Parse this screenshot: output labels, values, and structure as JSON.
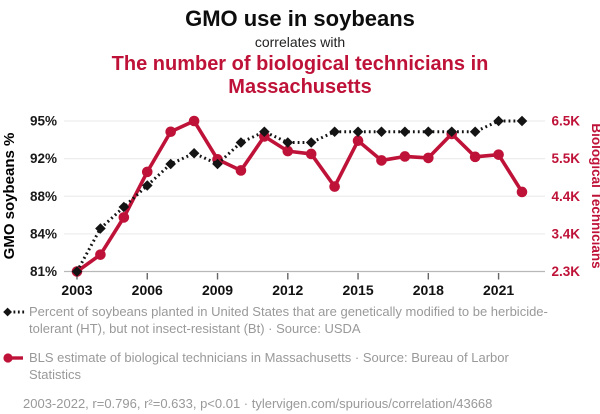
{
  "header": {
    "title": "GMO use in soybeans",
    "connector": "correlates with",
    "subtitle": "The number of biological technicians in Massachusetts"
  },
  "colors": {
    "accent_red": "#bf1238",
    "series_black": "#141414",
    "legend_gray": "#999999",
    "gridline": "#ededed",
    "axis_line": "#b8b8b8",
    "tick_mark": "#666666"
  },
  "chart_data": {
    "type": "line",
    "x": [
      2003,
      2004,
      2005,
      2006,
      2007,
      2008,
      2009,
      2010,
      2011,
      2012,
      2013,
      2014,
      2015,
      2016,
      2017,
      2018,
      2019,
      2020,
      2021,
      2022
    ],
    "series": [
      {
        "id": "gmo-soybeans",
        "name": "GMO soybeans %",
        "axis": "left",
        "style": "dotted",
        "marker": "diamond",
        "color": "#141414",
        "values": [
          81,
          85,
          87,
          89,
          91,
          92,
          91,
          93,
          94,
          93,
          93,
          94,
          94,
          94,
          94,
          94,
          94,
          94,
          95,
          95
        ]
      },
      {
        "id": "bio-technicians",
        "name": "Biological Technicians",
        "axis": "right",
        "style": "solid",
        "marker": "circle",
        "color": "#bf1238",
        "values": [
          2330,
          2800,
          3840,
          5110,
          6230,
          6530,
          5460,
          5150,
          6100,
          5690,
          5610,
          4700,
          5980,
          5430,
          5540,
          5500,
          6170,
          5530,
          5590,
          4550
        ]
      }
    ],
    "left_axis": {
      "label": "GMO soybeans %",
      "ticks": [
        "95%",
        "92%",
        "88%",
        "84%",
        "81%"
      ],
      "range": [
        81,
        95
      ]
    },
    "right_axis": {
      "label": "Biological Technicians",
      "ticks": [
        "6.5K",
        "5.5K",
        "4.4K",
        "3.4K",
        "2.3K"
      ],
      "range": [
        2330,
        6530
      ]
    },
    "x_axis": {
      "ticks": [
        "2003",
        "2006",
        "2009",
        "2012",
        "2015",
        "2018",
        "2021"
      ],
      "range": [
        2003,
        2022
      ]
    },
    "grid": "horizontal",
    "legend_position": "bottom"
  },
  "legend": [
    {
      "series": "gmo-soybeans",
      "label": "Percent of soybeans planted in United States that are genetically modified to be herbicide-tolerant (HT), but not insect-resistant (Bt) · Source: USDA"
    },
    {
      "series": "bio-technicians",
      "label": "BLS estimate of biological technicians in Massachusetts · Source: Bureau of Larbor Statistics"
    }
  ],
  "footer": {
    "stats": "2003-2022, r=0.796, r²=0.633, p<0.01 · tylervigen.com/spurious/correlation/43668"
  }
}
